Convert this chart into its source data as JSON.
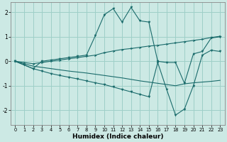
{
  "xlabel": "Humidex (Indice chaleur)",
  "bg_color": "#cce9e4",
  "grid_color": "#9ecfc8",
  "line_color": "#1a6b6b",
  "xlim": [
    -0.5,
    23.5
  ],
  "ylim": [
    -2.6,
    2.4
  ],
  "yticks": [
    -2,
    -1,
    0,
    1,
    2
  ],
  "xticks": [
    0,
    1,
    2,
    3,
    4,
    5,
    6,
    7,
    8,
    9,
    10,
    11,
    12,
    13,
    14,
    15,
    16,
    17,
    18,
    19,
    20,
    21,
    22,
    23
  ],
  "line1_x": [
    0,
    1,
    2,
    3,
    4,
    5,
    6,
    7,
    8,
    9,
    10,
    11,
    12,
    13,
    14,
    15,
    16,
    17,
    18,
    19,
    20,
    21,
    22,
    23
  ],
  "line1_y": [
    0.0,
    -0.15,
    -0.3,
    0.0,
    0.05,
    0.1,
    0.15,
    0.2,
    0.25,
    1.05,
    1.9,
    2.15,
    1.6,
    2.2,
    1.65,
    1.6,
    0.0,
    -0.05,
    -0.05,
    -0.9,
    0.3,
    0.4,
    0.95,
    1.0
  ],
  "line2_x": [
    0,
    1,
    2,
    3,
    4,
    5,
    6,
    7,
    8,
    9,
    10,
    11,
    12,
    13,
    14,
    15,
    16,
    17,
    18,
    19,
    20,
    21,
    22,
    23
  ],
  "line2_y": [
    0.0,
    -0.05,
    -0.1,
    -0.05,
    0.0,
    0.05,
    0.1,
    0.15,
    0.2,
    0.25,
    0.35,
    0.42,
    0.48,
    0.52,
    0.57,
    0.62,
    0.65,
    0.7,
    0.75,
    0.8,
    0.85,
    0.9,
    0.97,
    1.02
  ],
  "line3_x": [
    0,
    1,
    2,
    3,
    4,
    5,
    6,
    7,
    8,
    9,
    10,
    11,
    12,
    13,
    14,
    15,
    16,
    17,
    18,
    19,
    20,
    21,
    22,
    23
  ],
  "line3_y": [
    0.0,
    -0.1,
    -0.2,
    -0.25,
    -0.3,
    -0.35,
    -0.4,
    -0.44,
    -0.48,
    -0.53,
    -0.58,
    -0.63,
    -0.68,
    -0.74,
    -0.8,
    -0.85,
    -0.9,
    -0.95,
    -1.0,
    -0.92,
    -0.88,
    -0.85,
    -0.82,
    -0.78
  ],
  "line4_x": [
    0,
    1,
    2,
    3,
    4,
    5,
    6,
    7,
    8,
    9,
    10,
    11,
    12,
    13,
    14,
    15,
    16,
    17,
    18,
    19,
    20,
    21,
    22,
    23
  ],
  "line4_y": [
    0.0,
    -0.15,
    -0.3,
    -0.4,
    -0.5,
    -0.58,
    -0.65,
    -0.72,
    -0.8,
    -0.88,
    -0.95,
    -1.05,
    -1.15,
    -1.25,
    -1.35,
    -1.45,
    -0.05,
    -1.15,
    -2.2,
    -1.95,
    -1.0,
    0.25,
    0.45,
    0.4
  ]
}
